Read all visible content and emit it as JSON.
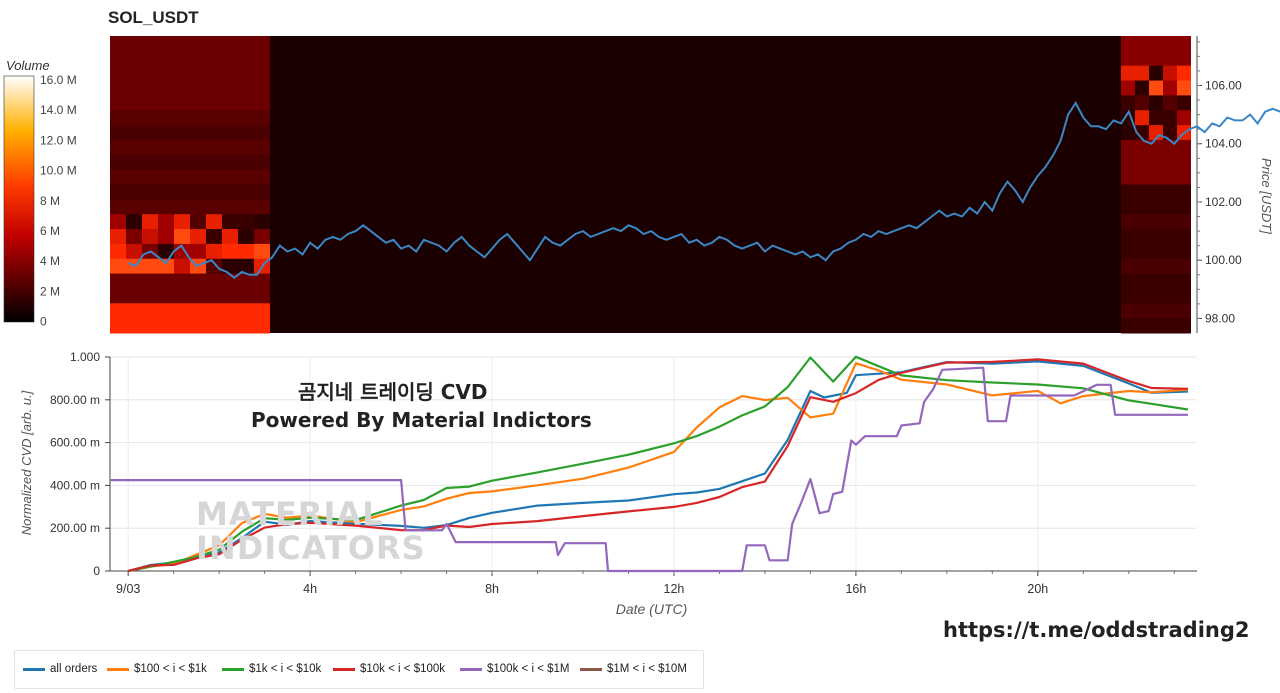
{
  "title": "SOL_USDT",
  "overlay_line1": "곰지네 트레이딩 CVD",
  "overlay_line2": "Powered By Material Indictors",
  "url_text": "https://t.me/oddstrading2",
  "watermark_line1": "MATERIAL",
  "watermark_line2": "INDICATORS",
  "chart_data": [
    {
      "type": "heatmap",
      "title": "SOL_USDT",
      "colorbar_label": "Volume",
      "colorbar_ticks": [
        "16.0 M",
        "14.0 M",
        "12.0 M",
        "10.0 M",
        "8 M",
        "6 M",
        "4 M",
        "2 M",
        "0"
      ],
      "y_axis_label": "Price [USDT]",
      "y_ticks": [
        98.0,
        100.0,
        102.0,
        104.0,
        106.0
      ],
      "ylim": [
        97.5,
        107.7
      ],
      "line_color": "#3b86c4",
      "price_series_start": "9/03 00:00",
      "price_series_step_minutes": 10,
      "price_series": [
        99.9,
        99.8,
        100.2,
        100.3,
        100.1,
        99.9,
        100.3,
        100.5,
        100.1,
        99.8,
        99.9,
        100.0,
        99.7,
        99.6,
        99.4,
        99.6,
        99.5,
        99.5,
        99.9,
        100.1,
        100.5,
        100.3,
        100.4,
        100.2,
        100.6,
        100.4,
        100.7,
        100.8,
        100.7,
        100.9,
        101.0,
        101.2,
        101.0,
        100.8,
        100.6,
        100.7,
        100.4,
        100.5,
        100.3,
        100.7,
        100.6,
        100.5,
        100.3,
        100.6,
        100.8,
        100.5,
        100.3,
        100.1,
        100.4,
        100.7,
        100.9,
        100.6,
        100.3,
        100.0,
        100.4,
        100.8,
        100.6,
        100.5,
        100.7,
        100.9,
        101.0,
        100.8,
        100.9,
        101.0,
        101.1,
        101.0,
        101.2,
        101.1,
        100.9,
        101.0,
        100.8,
        100.7,
        100.8,
        100.9,
        100.6,
        100.7,
        100.5,
        100.6,
        100.8,
        100.7,
        100.5,
        100.4,
        100.5,
        100.6,
        100.3,
        100.5,
        100.4,
        100.3,
        100.2,
        100.3,
        100.1,
        100.2,
        100.0,
        100.3,
        100.4,
        100.6,
        100.7,
        100.9,
        100.8,
        101.0,
        100.9,
        101.0,
        101.1,
        101.2,
        101.1,
        101.3,
        101.5,
        101.7,
        101.5,
        101.6,
        101.5,
        101.8,
        101.6,
        102.0,
        101.7,
        102.3,
        102.7,
        102.4,
        102.0,
        102.5,
        102.9,
        103.2,
        103.6,
        104.1,
        105.0,
        105.4,
        104.9,
        104.6,
        104.6,
        104.5,
        104.8,
        104.7,
        105.1,
        104.4,
        104.1,
        104.0,
        104.3,
        104.2,
        104.0,
        104.3,
        104.5,
        104.6,
        104.4,
        104.7,
        104.6,
        104.9,
        104.8,
        104.8,
        105.0,
        104.7,
        105.1,
        105.2,
        105.1,
        105.0,
        105.2,
        105.1,
        105.3,
        105.4,
        105.5,
        105.3,
        105.6,
        105.4,
        105.2,
        105.4,
        105.5,
        105.3,
        105.2,
        105.4,
        105.3,
        105.3,
        105.4,
        105.2,
        105.1,
        105.3,
        105.2,
        105.0,
        105.1,
        105.0,
        105.1,
        104.9,
        105.0,
        105.4,
        105.2,
        105.0,
        105.3,
        105.2,
        104.8,
        104.4,
        104.0,
        104.1,
        104.1,
        104.0,
        104.1,
        104.0,
        103.9,
        103.8
      ],
      "heatmap_note": "volume density by price bucket; bright columns at 9/03 00:00-03:30 and after 21:50"
    },
    {
      "type": "line",
      "x_axis_label": "Date (UTC)",
      "y_axis_label": "Normalized CVD [arb. u.]",
      "x_ticks": [
        "9/03",
        "4h",
        "8h",
        "12h",
        "16h",
        "20h"
      ],
      "y_ticks": [
        "0",
        "200.00 m",
        "400.00 m",
        "600.00 m",
        "800.00 m",
        "1.000"
      ],
      "ylim": [
        0,
        1.0
      ],
      "x_range_hours": [
        -0.4,
        23.5
      ],
      "series": [
        {
          "name": "all orders",
          "color": "#1f77b4",
          "points": [
            [
              0,
              0
            ],
            [
              0.5,
              0.02
            ],
            [
              1,
              0.03
            ],
            [
              1.5,
              0.06
            ],
            [
              2,
              0.08
            ],
            [
              2.5,
              0.15
            ],
            [
              3,
              0.23
            ],
            [
              3.5,
              0.22
            ],
            [
              4,
              0.24
            ],
            [
              5,
              0.23
            ],
            [
              6,
              0.22
            ],
            [
              6.5,
              0.21
            ],
            [
              7,
              0.22
            ],
            [
              7.5,
              0.25
            ],
            [
              8,
              0.27
            ],
            [
              9,
              0.3
            ],
            [
              10,
              0.31
            ],
            [
              11,
              0.32
            ],
            [
              12,
              0.35
            ],
            [
              12.5,
              0.36
            ],
            [
              13,
              0.38
            ],
            [
              13.5,
              0.42
            ],
            [
              14,
              0.46
            ],
            [
              14.5,
              0.62
            ],
            [
              15,
              0.85
            ],
            [
              15.3,
              0.82
            ],
            [
              15.8,
              0.84
            ],
            [
              16,
              0.92
            ],
            [
              17,
              0.93
            ],
            [
              17.5,
              0.95
            ],
            [
              18,
              0.97
            ],
            [
              19,
              0.96
            ],
            [
              20,
              0.97
            ],
            [
              21,
              0.95
            ],
            [
              22,
              0.87
            ],
            [
              22.5,
              0.83
            ],
            [
              23.3,
              0.84
            ]
          ]
        },
        {
          "name": "$100 < i < $1k",
          "color": "#ff7f0e",
          "points": [
            [
              0,
              0
            ],
            [
              0.5,
              0.03
            ],
            [
              1,
              0.04
            ],
            [
              1.5,
              0.08
            ],
            [
              2,
              0.12
            ],
            [
              2.5,
              0.22
            ],
            [
              3,
              0.26
            ],
            [
              3.5,
              0.24
            ],
            [
              4,
              0.25
            ],
            [
              5,
              0.22
            ],
            [
              6,
              0.28
            ],
            [
              6.5,
              0.3
            ],
            [
              7,
              0.34
            ],
            [
              7.5,
              0.37
            ],
            [
              8,
              0.38
            ],
            [
              9,
              0.41
            ],
            [
              10,
              0.44
            ],
            [
              11,
              0.49
            ],
            [
              12,
              0.56
            ],
            [
              12.5,
              0.67
            ],
            [
              13,
              0.76
            ],
            [
              13.5,
              0.81
            ],
            [
              14,
              0.79
            ],
            [
              14.5,
              0.8
            ],
            [
              15,
              0.71
            ],
            [
              15.5,
              0.73
            ],
            [
              16,
              0.97
            ],
            [
              16.5,
              0.94
            ],
            [
              17,
              0.9
            ],
            [
              18,
              0.88
            ],
            [
              19,
              0.83
            ],
            [
              20,
              0.85
            ],
            [
              20.5,
              0.79
            ],
            [
              21,
              0.82
            ],
            [
              22,
              0.84
            ],
            [
              22.5,
              0.83
            ],
            [
              23.3,
              0.84
            ]
          ]
        },
        {
          "name": "$1k < i < $10k",
          "color": "#2ca02c",
          "points": [
            [
              0,
              0
            ],
            [
              0.5,
              0.03
            ],
            [
              1,
              0.05
            ],
            [
              1.5,
              0.07
            ],
            [
              2,
              0.1
            ],
            [
              2.5,
              0.18
            ],
            [
              3,
              0.24
            ],
            [
              3.5,
              0.23
            ],
            [
              4,
              0.24
            ],
            [
              5,
              0.23
            ],
            [
              6,
              0.3
            ],
            [
              6.5,
              0.33
            ],
            [
              7,
              0.39
            ],
            [
              7.5,
              0.4
            ],
            [
              8,
              0.43
            ],
            [
              9,
              0.47
            ],
            [
              10,
              0.51
            ],
            [
              11,
              0.55
            ],
            [
              12,
              0.6
            ],
            [
              12.5,
              0.63
            ],
            [
              13,
              0.67
            ],
            [
              13.5,
              0.72
            ],
            [
              14,
              0.76
            ],
            [
              14.5,
              0.85
            ],
            [
              15,
              0.99
            ],
            [
              15.5,
              0.88
            ],
            [
              16,
              1.0
            ],
            [
              16.5,
              0.96
            ],
            [
              17,
              0.92
            ],
            [
              18,
              0.9
            ],
            [
              19,
              0.89
            ],
            [
              20,
              0.88
            ],
            [
              21,
              0.86
            ],
            [
              22,
              0.8
            ],
            [
              22.5,
              0.78
            ],
            [
              23.3,
              0.75
            ]
          ]
        },
        {
          "name": "$10k < i < $100k",
          "color": "#d62728",
          "points": [
            [
              0,
              0
            ],
            [
              0.5,
              0.02
            ],
            [
              1,
              0.02
            ],
            [
              1.5,
              0.05
            ],
            [
              2,
              0.07
            ],
            [
              2.5,
              0.14
            ],
            [
              3,
              0.2
            ],
            [
              3.5,
              0.22
            ],
            [
              4,
              0.23
            ],
            [
              5,
              0.22
            ],
            [
              6,
              0.2
            ],
            [
              6.5,
              0.2
            ],
            [
              7,
              0.22
            ],
            [
              7.5,
              0.21
            ],
            [
              8,
              0.22
            ],
            [
              9,
              0.23
            ],
            [
              10,
              0.25
            ],
            [
              11,
              0.27
            ],
            [
              12,
              0.29
            ],
            [
              12.5,
              0.31
            ],
            [
              13,
              0.34
            ],
            [
              13.5,
              0.39
            ],
            [
              14,
              0.42
            ],
            [
              14.5,
              0.59
            ],
            [
              15,
              0.82
            ],
            [
              15.5,
              0.8
            ],
            [
              16,
              0.84
            ],
            [
              16.5,
              0.9
            ],
            [
              17,
              0.93
            ],
            [
              17.5,
              0.95
            ],
            [
              18,
              0.97
            ],
            [
              19,
              0.97
            ],
            [
              20,
              0.98
            ],
            [
              21,
              0.96
            ],
            [
              22,
              0.88
            ],
            [
              22.5,
              0.85
            ],
            [
              23.3,
              0.85
            ]
          ]
        },
        {
          "name": "$100k < i < $1M",
          "color": "#9467bd",
          "points": [
            [
              -0.4,
              0.425
            ],
            [
              6.0,
              0.425
            ],
            [
              6.1,
              0.19
            ],
            [
              6.9,
              0.19
            ],
            [
              7.0,
              0.22
            ],
            [
              7.2,
              0.135
            ],
            [
              9.4,
              0.135
            ],
            [
              9.45,
              0.075
            ],
            [
              9.6,
              0.13
            ],
            [
              10.5,
              0.13
            ],
            [
              10.55,
              0
            ],
            [
              13.5,
              0
            ],
            [
              13.6,
              0.12
            ],
            [
              14.0,
              0.12
            ],
            [
              14.1,
              0.05
            ],
            [
              14.5,
              0.05
            ],
            [
              14.6,
              0.22
            ],
            [
              14.8,
              0.32
            ],
            [
              15.0,
              0.43
            ],
            [
              15.2,
              0.27
            ],
            [
              15.4,
              0.28
            ],
            [
              15.5,
              0.36
            ],
            [
              15.7,
              0.37
            ],
            [
              15.9,
              0.61
            ],
            [
              16.0,
              0.59
            ],
            [
              16.2,
              0.63
            ],
            [
              16.9,
              0.63
            ],
            [
              17.0,
              0.68
            ],
            [
              17.4,
              0.69
            ],
            [
              17.5,
              0.79
            ],
            [
              17.7,
              0.85
            ],
            [
              17.9,
              0.94
            ],
            [
              18.8,
              0.95
            ],
            [
              18.9,
              0.7
            ],
            [
              19.3,
              0.7
            ],
            [
              19.4,
              0.82
            ],
            [
              20.8,
              0.82
            ],
            [
              21.3,
              0.87
            ],
            [
              21.6,
              0.87
            ],
            [
              21.7,
              0.73
            ],
            [
              23.3,
              0.73
            ]
          ]
        },
        {
          "name": "$1M < i < $10M",
          "color": "#8c564b",
          "points": []
        }
      ]
    }
  ]
}
